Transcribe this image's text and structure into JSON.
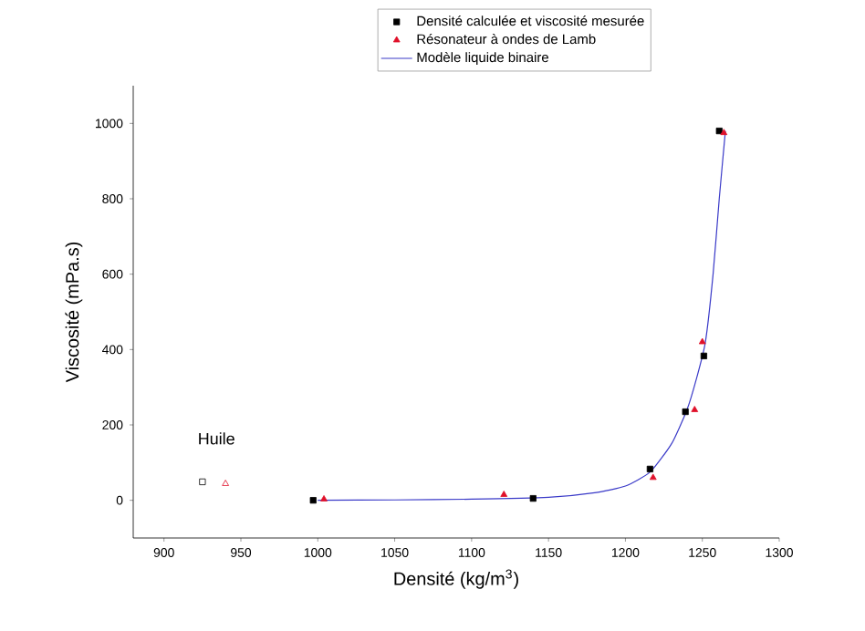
{
  "chart_data": {
    "type": "scatter",
    "xlabel": "Densité (kg/m$^{3}$)",
    "ylabel": "Viscosité (mPa.s)",
    "xlim": [
      880,
      1300
    ],
    "ylim": [
      -100,
      1100
    ],
    "xticks": [
      900,
      950,
      1000,
      1050,
      1100,
      1150,
      1200,
      1250,
      1300
    ],
    "yticks": [
      0,
      200,
      400,
      600,
      800,
      1000
    ],
    "grid": false,
    "legend": "top",
    "series": [
      {
        "name": "Densité calculée et viscosité mesurée",
        "marker": "square",
        "color": "#000000",
        "x": [
          997,
          1140,
          1216,
          1239,
          1251,
          1261
        ],
        "values": [
          0,
          5,
          83,
          235,
          383,
          980
        ]
      },
      {
        "name": "Résonateur à ondes de Lamb",
        "marker": "triangle",
        "color": "#e0102a",
        "x": [
          1004,
          1121,
          1218,
          1245,
          1250,
          1264
        ],
        "values": [
          3,
          15,
          60,
          240,
          420,
          975
        ]
      },
      {
        "name": "Modèle liquide binaire",
        "type": "line",
        "marker": "none",
        "color": "#3a3ac8",
        "x": [
          1000,
          1050,
          1100,
          1150,
          1180,
          1200,
          1216,
          1230,
          1240,
          1246,
          1252,
          1257,
          1261,
          1265
        ],
        "values": [
          0,
          1,
          3,
          8,
          20,
          38,
          75,
          150,
          240,
          320,
          420,
          600,
          800,
          980
        ]
      },
      {
        "marker": "square",
        "color": "#000000",
        "x": [
          925
        ],
        "values": [
          49
        ]
      },
      {
        "marker": "triangle",
        "color": "#e0102a",
        "x": [
          940
        ],
        "values": [
          44
        ]
      }
    ],
    "annotations": [
      "Huile"
    ]
  }
}
